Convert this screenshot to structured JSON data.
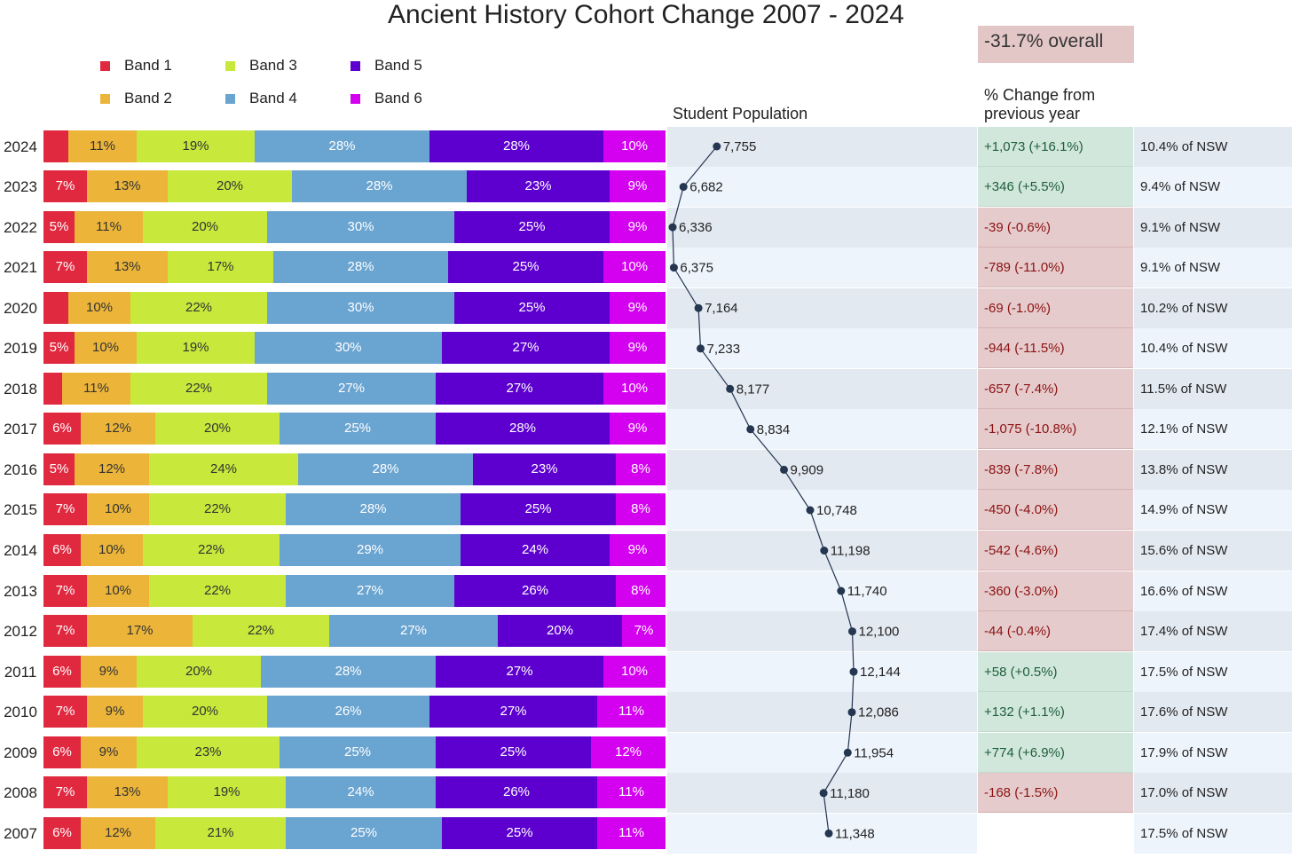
{
  "title": "Ancient History Cohort Change 2007 - 2024",
  "overall": "-31.7% overall",
  "population_label": "Student Population",
  "change_label_line1": "% Change from",
  "change_label_line2": "previous year",
  "colors": {
    "band1": "#e0283f",
    "band2": "#ecb53a",
    "band3": "#c8e83c",
    "band4": "#6aa4d0",
    "band5": "#5d00cf",
    "band6": "#d400f0",
    "row_dark": "#e3e9f1",
    "row_light": "#eef4fc",
    "line": "#243650"
  },
  "chart_data": {
    "type": "bar",
    "stacked": true,
    "title": "Ancient History Cohort Change 2007 - 2024",
    "legend": [
      "Band 1",
      "Band 2",
      "Band 3",
      "Band 4",
      "Band 5",
      "Band 6"
    ],
    "legend_placement": "top-left",
    "rows": [
      {
        "year": "2024",
        "pct": [
          4,
          11,
          19,
          28,
          28,
          10
        ],
        "labels": [
          "",
          "11%",
          "19%",
          "28%",
          "28%",
          "10%"
        ],
        "population": 7755,
        "population_label": "7,755",
        "change": "+1,073  (+16.1%)",
        "change_sign": "pos",
        "nsw": "10.4% of NSW"
      },
      {
        "year": "2023",
        "pct": [
          7,
          13,
          20,
          28,
          23,
          9
        ],
        "labels": [
          "7%",
          "13%",
          "20%",
          "28%",
          "23%",
          "9%"
        ],
        "population": 6682,
        "population_label": "6,682",
        "change": "+346  (+5.5%)",
        "change_sign": "pos",
        "nsw": "9.4% of NSW"
      },
      {
        "year": "2022",
        "pct": [
          5,
          11,
          20,
          30,
          25,
          9
        ],
        "labels": [
          "5%",
          "11%",
          "20%",
          "30%",
          "25%",
          "9%"
        ],
        "population": 6336,
        "population_label": "6,336",
        "change": "-39  (-0.6%)",
        "change_sign": "neg",
        "nsw": "9.1% of NSW"
      },
      {
        "year": "2021",
        "pct": [
          7,
          13,
          17,
          28,
          25,
          10
        ],
        "labels": [
          "7%",
          "13%",
          "17%",
          "28%",
          "25%",
          "10%"
        ],
        "population": 6375,
        "population_label": "6,375",
        "change": "-789  (-11.0%)",
        "change_sign": "neg",
        "nsw": "9.1% of NSW"
      },
      {
        "year": "2020",
        "pct": [
          4,
          10,
          22,
          30,
          25,
          9
        ],
        "labels": [
          "",
          "10%",
          "22%",
          "30%",
          "25%",
          "9%"
        ],
        "population": 7164,
        "population_label": "7,164",
        "change": "-69  (-1.0%)",
        "change_sign": "neg",
        "nsw": "10.2% of NSW"
      },
      {
        "year": "2019",
        "pct": [
          5,
          10,
          19,
          30,
          27,
          9
        ],
        "labels": [
          "5%",
          "10%",
          "19%",
          "30%",
          "27%",
          "9%"
        ],
        "population": 7233,
        "population_label": "7,233",
        "change": "-944  (-11.5%)",
        "change_sign": "neg",
        "nsw": "10.4% of NSW"
      },
      {
        "year": "2018",
        "pct": [
          3,
          11,
          22,
          27,
          27,
          10
        ],
        "labels": [
          "",
          "11%",
          "22%",
          "27%",
          "27%",
          "10%"
        ],
        "population": 8177,
        "population_label": "8,177",
        "change": "-657  (-7.4%)",
        "change_sign": "neg",
        "nsw": "11.5% of NSW"
      },
      {
        "year": "2017",
        "pct": [
          6,
          12,
          20,
          25,
          28,
          9
        ],
        "labels": [
          "6%",
          "12%",
          "20%",
          "25%",
          "28%",
          "9%"
        ],
        "population": 8834,
        "population_label": "8,834",
        "change": "-1,075  (-10.8%)",
        "change_sign": "neg",
        "nsw": "12.1% of NSW"
      },
      {
        "year": "2016",
        "pct": [
          5,
          12,
          24,
          28,
          23,
          8
        ],
        "labels": [
          "5%",
          "12%",
          "24%",
          "28%",
          "23%",
          "8%"
        ],
        "population": 9909,
        "population_label": "9,909",
        "change": "-839  (-7.8%)",
        "change_sign": "neg",
        "nsw": "13.8% of NSW"
      },
      {
        "year": "2015",
        "pct": [
          7,
          10,
          22,
          28,
          25,
          8
        ],
        "labels": [
          "7%",
          "10%",
          "22%",
          "28%",
          "25%",
          "8%"
        ],
        "population": 10748,
        "population_label": "10,748",
        "change": "-450  (-4.0%)",
        "change_sign": "neg",
        "nsw": "14.9% of NSW"
      },
      {
        "year": "2014",
        "pct": [
          6,
          10,
          22,
          29,
          24,
          9
        ],
        "labels": [
          "6%",
          "10%",
          "22%",
          "29%",
          "24%",
          "9%"
        ],
        "population": 11198,
        "population_label": "11,198",
        "change": "-542  (-4.6%)",
        "change_sign": "neg",
        "nsw": "15.6% of NSW"
      },
      {
        "year": "2013",
        "pct": [
          7,
          10,
          22,
          27,
          26,
          8
        ],
        "labels": [
          "7%",
          "10%",
          "22%",
          "27%",
          "26%",
          "8%"
        ],
        "population": 11740,
        "population_label": "11,740",
        "change": "-360  (-3.0%)",
        "change_sign": "neg",
        "nsw": "16.6% of NSW"
      },
      {
        "year": "2012",
        "pct": [
          7,
          17,
          22,
          27,
          20,
          7
        ],
        "labels": [
          "7%",
          "17%",
          "22%",
          "27%",
          "20%",
          "7%"
        ],
        "population": 12100,
        "population_label": "12,100",
        "change": "-44  (-0.4%)",
        "change_sign": "neg",
        "nsw": "17.4% of NSW"
      },
      {
        "year": "2011",
        "pct": [
          6,
          9,
          20,
          28,
          27,
          10
        ],
        "labels": [
          "6%",
          "9%",
          "20%",
          "28%",
          "27%",
          "10%"
        ],
        "population": 12144,
        "population_label": "12,144",
        "change": "+58  (+0.5%)",
        "change_sign": "pos",
        "nsw": "17.5% of NSW"
      },
      {
        "year": "2010",
        "pct": [
          7,
          9,
          20,
          26,
          27,
          11
        ],
        "labels": [
          "7%",
          "9%",
          "20%",
          "26%",
          "27%",
          "11%"
        ],
        "population": 12086,
        "population_label": "12,086",
        "change": "+132  (+1.1%)",
        "change_sign": "pos",
        "nsw": "17.6% of NSW"
      },
      {
        "year": "2009",
        "pct": [
          6,
          9,
          23,
          25,
          25,
          12
        ],
        "labels": [
          "6%",
          "9%",
          "23%",
          "25%",
          "25%",
          "12%"
        ],
        "population": 11954,
        "population_label": "11,954",
        "change": "+774  (+6.9%)",
        "change_sign": "pos",
        "nsw": "17.9% of NSW"
      },
      {
        "year": "2008",
        "pct": [
          7,
          13,
          19,
          24,
          26,
          11
        ],
        "labels": [
          "7%",
          "13%",
          "19%",
          "24%",
          "26%",
          "11%"
        ],
        "population": 11180,
        "population_label": "11,180",
        "change": "-168  (-1.5%)",
        "change_sign": "neg",
        "nsw": "17.0% of NSW"
      },
      {
        "year": "2007",
        "pct": [
          6,
          12,
          21,
          25,
          25,
          11
        ],
        "labels": [
          "6%",
          "12%",
          "21%",
          "25%",
          "25%",
          "11%"
        ],
        "population": 11348,
        "population_label": "11,348",
        "change": "",
        "change_sign": "none",
        "nsw": "17.5% of NSW"
      }
    ],
    "population_range": [
      6336,
      12144
    ]
  }
}
